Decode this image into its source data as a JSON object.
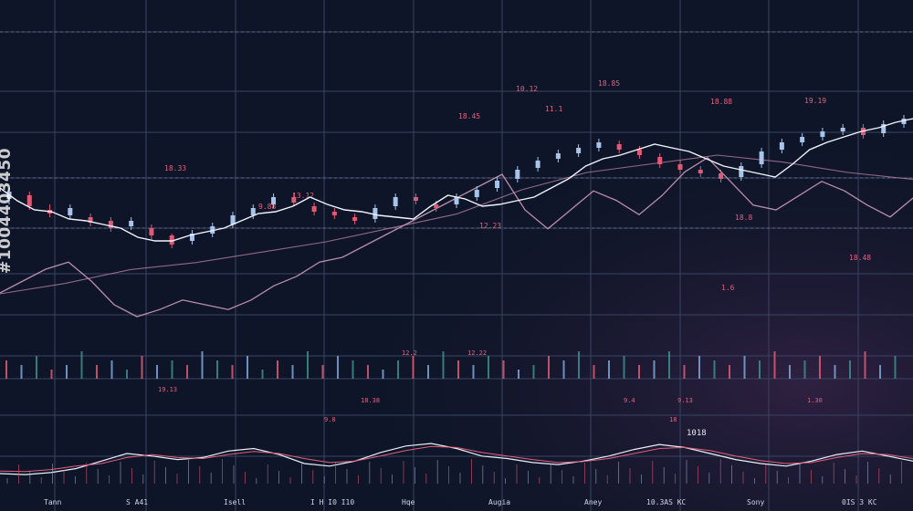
{
  "stock_id": "#1004403450",
  "chart_data": {
    "type": "line",
    "grid": true,
    "price_panel": {
      "main_series": [
        62,
        55,
        50,
        49,
        45,
        44,
        42,
        40,
        35,
        33,
        33,
        36,
        38,
        40,
        44,
        48,
        49,
        52,
        57,
        53,
        50,
        49,
        47,
        46,
        45,
        52,
        58,
        56,
        52,
        53,
        55,
        57,
        62,
        67,
        74,
        78,
        80,
        83,
        86,
        84,
        82,
        78,
        74,
        72,
        70,
        68,
        75,
        83,
        87,
        90,
        93,
        95,
        98,
        100
      ],
      "lower_band": [
        15,
        20,
        25,
        28,
        20,
        10,
        5,
        8,
        12,
        10,
        8,
        12,
        18,
        22,
        28,
        30,
        35,
        40,
        45,
        50,
        55,
        60,
        65,
        50,
        42,
        50,
        58,
        54,
        48,
        56,
        66,
        72,
        62,
        52,
        50,
        56,
        62,
        58,
        52,
        47,
        55
      ],
      "upper_band": [
        20,
        26,
        34,
        38,
        44,
        50,
        58,
        66,
        80,
        90,
        95,
        100,
        96,
        90,
        86
      ],
      "candles": [
        {
          "o": 56,
          "c": 60,
          "h": 62,
          "l": 53
        },
        {
          "o": 58,
          "c": 52,
          "h": 60,
          "l": 50
        },
        {
          "o": 50,
          "c": 48,
          "h": 53,
          "l": 46
        },
        {
          "o": 47,
          "c": 51,
          "h": 53,
          "l": 45
        },
        {
          "o": 46,
          "c": 43,
          "h": 48,
          "l": 41
        },
        {
          "o": 44,
          "c": 40,
          "h": 46,
          "l": 38
        },
        {
          "o": 41,
          "c": 44,
          "h": 46,
          "l": 39
        },
        {
          "o": 40,
          "c": 36,
          "h": 42,
          "l": 34
        },
        {
          "o": 36,
          "c": 31,
          "h": 37,
          "l": 29
        },
        {
          "o": 33,
          "c": 37,
          "h": 39,
          "l": 31
        },
        {
          "o": 37,
          "c": 41,
          "h": 43,
          "l": 35
        },
        {
          "o": 42,
          "c": 47,
          "h": 49,
          "l": 40
        },
        {
          "o": 47,
          "c": 51,
          "h": 53,
          "l": 45
        },
        {
          "o": 53,
          "c": 57,
          "h": 59,
          "l": 51
        },
        {
          "o": 57,
          "c": 54,
          "h": 59,
          "l": 52
        },
        {
          "o": 52,
          "c": 49,
          "h": 54,
          "l": 47
        },
        {
          "o": 49,
          "c": 47,
          "h": 51,
          "l": 45
        },
        {
          "o": 46,
          "c": 44,
          "h": 48,
          "l": 42
        },
        {
          "o": 45,
          "c": 51,
          "h": 53,
          "l": 43
        },
        {
          "o": 52,
          "c": 57,
          "h": 59,
          "l": 50
        },
        {
          "o": 57,
          "c": 55,
          "h": 59,
          "l": 53
        },
        {
          "o": 53,
          "c": 51,
          "h": 55,
          "l": 49
        },
        {
          "o": 53,
          "c": 57,
          "h": 59,
          "l": 51
        },
        {
          "o": 57,
          "c": 61,
          "h": 63,
          "l": 55
        },
        {
          "o": 62,
          "c": 66,
          "h": 68,
          "l": 60
        },
        {
          "o": 67,
          "c": 72,
          "h": 74,
          "l": 65
        },
        {
          "o": 73,
          "c": 77,
          "h": 79,
          "l": 71
        },
        {
          "o": 78,
          "c": 81,
          "h": 83,
          "l": 76
        },
        {
          "o": 81,
          "c": 84,
          "h": 86,
          "l": 79
        },
        {
          "o": 84,
          "c": 87,
          "h": 89,
          "l": 82
        },
        {
          "o": 86,
          "c": 83,
          "h": 88,
          "l": 81
        },
        {
          "o": 83,
          "c": 80,
          "h": 85,
          "l": 78
        },
        {
          "o": 79,
          "c": 75,
          "h": 81,
          "l": 73
        },
        {
          "o": 75,
          "c": 72,
          "h": 77,
          "l": 70
        },
        {
          "o": 72,
          "c": 70,
          "h": 74,
          "l": 68
        },
        {
          "o": 70,
          "c": 67,
          "h": 72,
          "l": 65
        },
        {
          "o": 68,
          "c": 74,
          "h": 76,
          "l": 66
        },
        {
          "o": 75,
          "c": 82,
          "h": 84,
          "l": 73
        },
        {
          "o": 83,
          "c": 87,
          "h": 89,
          "l": 81
        },
        {
          "o": 87,
          "c": 90,
          "h": 92,
          "l": 85
        },
        {
          "o": 90,
          "c": 93,
          "h": 95,
          "l": 88
        },
        {
          "o": 93,
          "c": 95,
          "h": 97,
          "l": 91
        },
        {
          "o": 95,
          "c": 91,
          "h": 97,
          "l": 89
        },
        {
          "o": 92,
          "c": 97,
          "h": 99,
          "l": 90
        },
        {
          "o": 97,
          "c": 100,
          "h": 102,
          "l": 95
        }
      ],
      "labels": [
        "18.33",
        "10.12",
        "18.85",
        "18.45",
        "11.1",
        "18.88",
        "19.19",
        "13.12",
        "9.88",
        "18.8",
        "12.23",
        "18.48",
        "1.6"
      ]
    },
    "volume_panel": {
      "volume": [
        4,
        3,
        5,
        2,
        3,
        6,
        3,
        4,
        2,
        5,
        3,
        4,
        3,
        6,
        4,
        3,
        5,
        2,
        4,
        3,
        6,
        3,
        5,
        4,
        3,
        2,
        4,
        5,
        3,
        6,
        4,
        3,
        5,
        4,
        2,
        3,
        5,
        4,
        6,
        3,
        4,
        5,
        3,
        4,
        6,
        3,
        5,
        4,
        3,
        5,
        4,
        6,
        3,
        4,
        5,
        3,
        4,
        6,
        3,
        5
      ],
      "labels": [
        "12.2",
        "12.22",
        "19.13",
        "18.38",
        "9.4",
        "9.13",
        "1.30"
      ]
    },
    "oscillator_panel": {
      "series": [
        {
          "values": [
            20,
            18,
            22,
            30,
            45,
            60,
            55,
            48,
            52,
            65,
            70,
            58,
            40,
            35,
            45,
            62,
            75,
            80,
            70,
            55,
            50,
            42,
            38,
            45,
            55,
            68,
            78,
            72,
            60,
            48,
            40,
            35,
            45,
            58,
            65,
            55,
            45
          ]
        },
        {
          "values": [
            25,
            24,
            28,
            35,
            40,
            52,
            58,
            52,
            50,
            58,
            64,
            60,
            50,
            42,
            45,
            55,
            66,
            74,
            72,
            62,
            55,
            48,
            42,
            44,
            50,
            60,
            70,
            72,
            66,
            55,
            46,
            40,
            42,
            52,
            60,
            58,
            50
          ]
        }
      ],
      "label": "1018",
      "marks": [
        "9.8",
        "18"
      ]
    },
    "x_tick_labels": [
      "Tann",
      "S A41",
      "Isell",
      "I H I0 I10",
      "Hqe",
      "Augia",
      "Aney",
      "10.3AS KC",
      "Sony",
      "0IS 3 KC"
    ]
  }
}
